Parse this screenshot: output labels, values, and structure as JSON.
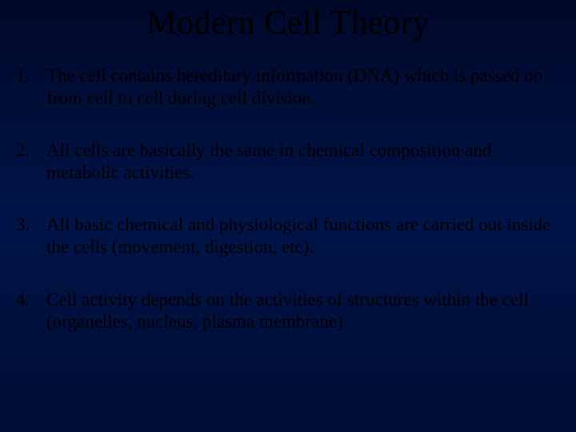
{
  "slide": {
    "title": "Modern Cell Theory",
    "items": [
      "The cell contains hereditary information (DNA) which is passed on from cell to cell during cell division.",
      "All cells are basically the same in chemical composition and metabolic activities.",
      "All basic chemical and physiological functions are carried out inside the cells (movement, digestion, etc).",
      "Cell activity depends on the activities of structures within the cell (organelles, nucleus, plasma membrane)"
    ],
    "background_gradient": [
      "#000828",
      "#001448",
      "#000d35"
    ],
    "title_color": "#000000",
    "text_color": "#000000",
    "title_fontsize": 42,
    "body_fontsize": 23,
    "font_family": "Times New Roman"
  }
}
